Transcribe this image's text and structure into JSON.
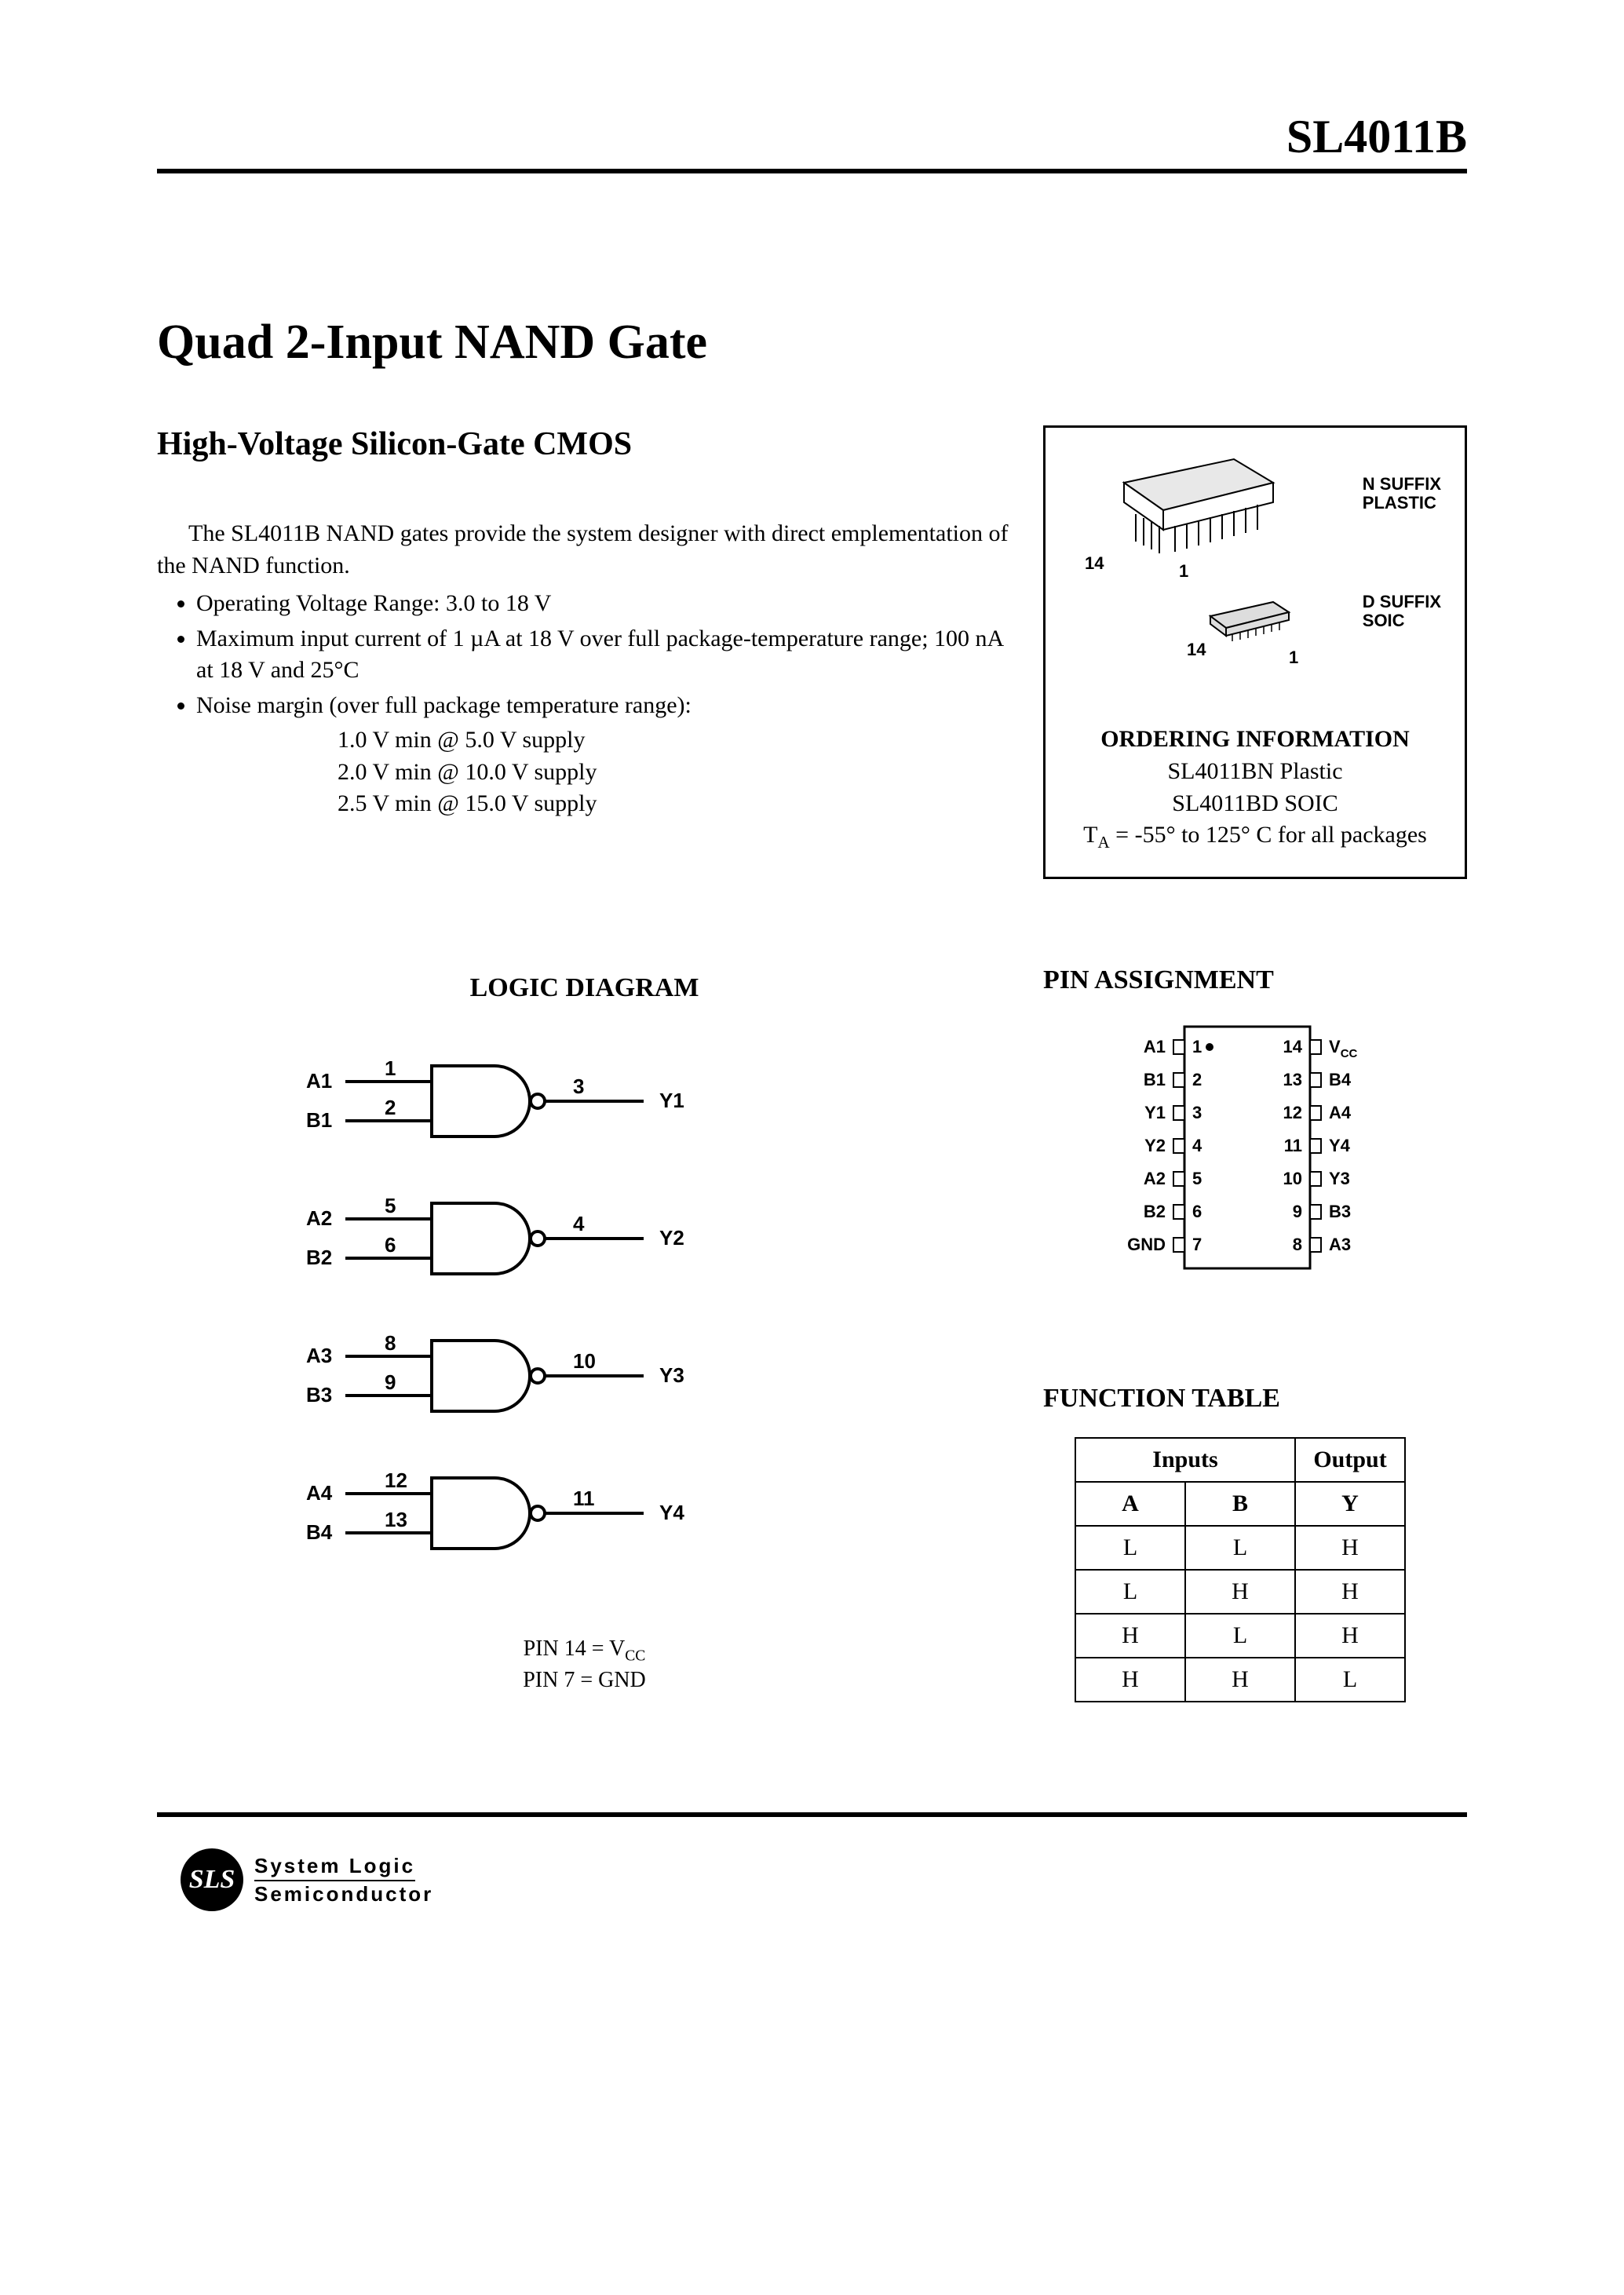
{
  "header": {
    "part_number": "SL4011B"
  },
  "title": "Quad 2-Input NAND Gate",
  "subtitle": "High-Voltage Silicon-Gate CMOS",
  "intro": "The SL4011B NAND gates provide the system designer with direct emplementation of the NAND function.",
  "features": {
    "item1": "Operating Voltage Range: 3.0 to 18 V",
    "item2": "Maximum input current of 1 µA at 18 V over full package-temperature range; 100 nA at 18 V and 25°C",
    "item3": "Noise margin (over full package temperature range):",
    "sub1": "1.0 V min @ 5.0 V supply",
    "sub2": "2.0 V min @ 10.0 V supply",
    "sub3": "2.5 V min @ 15.0 V supply"
  },
  "ordering": {
    "n_suffix_l1": "N SUFFIX",
    "n_suffix_l2": "PLASTIC",
    "d_suffix_l1": "D SUFFIX",
    "d_suffix_l2": "SOIC",
    "pin14a": "14",
    "pin1a": "1",
    "pin14b": "14",
    "pin1b": "1",
    "title": "ORDERING INFORMATION",
    "line1": "SL4011BN Plastic",
    "line2": "SL4011BD SOIC",
    "temp_prefix": "T",
    "temp_sub": "A",
    "temp_rest": " = -55° to 125° C for all packages"
  },
  "logic_diagram": {
    "heading": "LOGIC DIAGRAM",
    "gates": [
      {
        "inA": "A1",
        "inB": "B1",
        "pinA": "1",
        "pinB": "2",
        "pinY": "3",
        "out": "Y1"
      },
      {
        "inA": "A2",
        "inB": "B2",
        "pinA": "5",
        "pinB": "6",
        "pinY": "4",
        "out": "Y2"
      },
      {
        "inA": "A3",
        "inB": "B3",
        "pinA": "8",
        "pinB": "9",
        "pinY": "10",
        "out": "Y3"
      },
      {
        "inA": "A4",
        "inB": "B4",
        "pinA": "12",
        "pinB": "13",
        "pinY": "11",
        "out": "Y4"
      }
    ],
    "note1_prefix": "PIN 14 = V",
    "note1_sub": "CC",
    "note2": "PIN 7 = GND"
  },
  "pin_assignment": {
    "heading": "PIN ASSIGNMENT",
    "left": [
      {
        "label": "A1",
        "num": "1",
        "dot": true
      },
      {
        "label": "B1",
        "num": "2"
      },
      {
        "label": "Y1",
        "num": "3"
      },
      {
        "label": "Y2",
        "num": "4"
      },
      {
        "label": "A2",
        "num": "5"
      },
      {
        "label": "B2",
        "num": "6"
      },
      {
        "label": "GND",
        "num": "7"
      }
    ],
    "right": [
      {
        "label": "VCC",
        "num": "14",
        "vcc": true
      },
      {
        "label": "B4",
        "num": "13"
      },
      {
        "label": "A4",
        "num": "12"
      },
      {
        "label": "Y4",
        "num": "11"
      },
      {
        "label": "Y3",
        "num": "10"
      },
      {
        "label": "B3",
        "num": "9"
      },
      {
        "label": "A3",
        "num": "8"
      }
    ],
    "vcc_prefix": "V",
    "vcc_sub": "CC"
  },
  "function_table": {
    "heading": "FUNCTION TABLE",
    "inputs_label": "Inputs",
    "output_label": "Output",
    "colA": "A",
    "colB": "B",
    "colY": "Y",
    "rows": [
      [
        "L",
        "L",
        "H"
      ],
      [
        "L",
        "H",
        "H"
      ],
      [
        "H",
        "L",
        "H"
      ],
      [
        "H",
        "H",
        "L"
      ]
    ]
  },
  "footer": {
    "logo": "SLS",
    "line1": "System Logic",
    "line2": "Semiconductor"
  },
  "style": {
    "stroke": "#000000",
    "stroke_width_thick": 4,
    "stroke_width_thin": 2,
    "font_diagram": 26
  }
}
